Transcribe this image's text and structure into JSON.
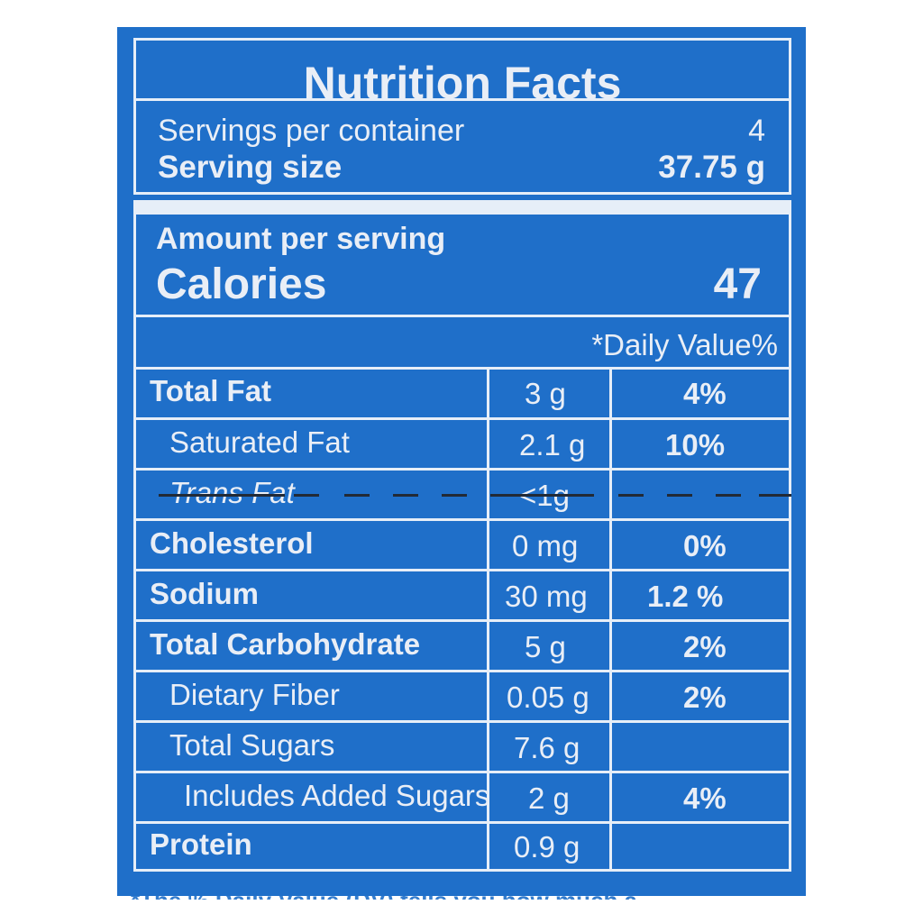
{
  "label": {
    "title": "Nutrition Facts",
    "servings_per_container_label": "Servings per container",
    "servings_per_container_value": "4",
    "serving_size_label": "Serving size",
    "serving_size_value": "37.75 g",
    "amount_per_serving": "Amount per serving",
    "calories_label": "Calories",
    "calories_value": "47",
    "daily_value_header": "*Daily Value%",
    "rows": [
      {
        "name": "Total Fat",
        "amount": "3 g",
        "dv": "4%"
      },
      {
        "name": "Saturated Fat",
        "amount": "2.1 g",
        "dv": "10%"
      },
      {
        "name": "Trans Fat",
        "amount": "<1g",
        "dv": ""
      },
      {
        "name": "Cholesterol",
        "amount": "0 mg",
        "dv": "0%"
      },
      {
        "name": "Sodium",
        "amount": "30 mg",
        "dv": "1.2 %"
      },
      {
        "name": "Total Carbohydrate",
        "amount": "5 g",
        "dv": "2%"
      },
      {
        "name": "Dietary Fiber",
        "amount": "0.05 g",
        "dv": "2%"
      },
      {
        "name": "Total Sugars",
        "amount": "7.6 g",
        "dv": ""
      },
      {
        "name": "Includes Added Sugars",
        "amount": "2 g",
        "dv": "4%"
      },
      {
        "name": "Protein",
        "amount": "0.9 g",
        "dv": ""
      }
    ],
    "footnote": "*The % Daily Value (DV) tells you how much a"
  }
}
